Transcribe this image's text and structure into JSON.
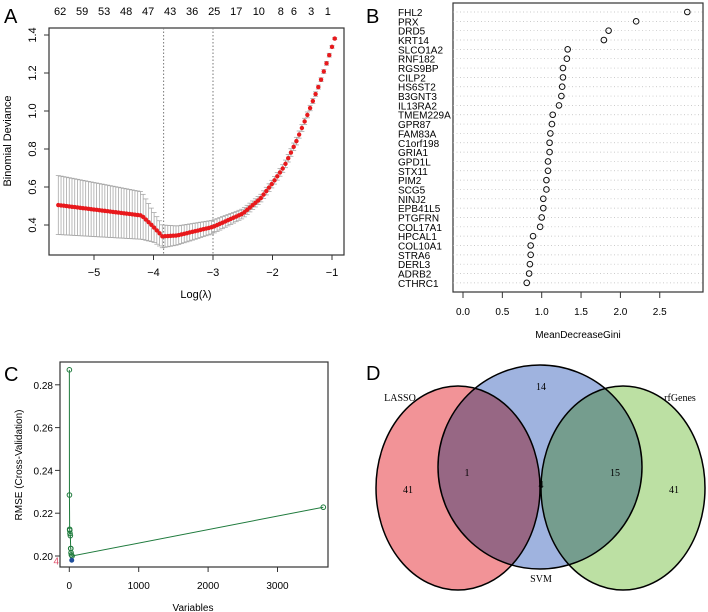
{
  "panel_labels": [
    "A",
    "B",
    "C",
    "D"
  ],
  "chart_data": [
    {
      "type": "line",
      "panel": "A",
      "xlabel": "Log(λ)",
      "ylabel": "Binomial Deviance",
      "xlim": [
        -5.8,
        -0.85
      ],
      "ylim": [
        0.27,
        1.42
      ],
      "xticks": [
        -5,
        -4,
        -3,
        -2,
        -1
      ],
      "yticks": [
        0.4,
        0.6,
        0.8,
        1.0,
        1.2,
        1.4
      ],
      "top_axis": [
        [
          -5.57,
          "62"
        ],
        [
          -5.2,
          "59"
        ],
        [
          -4.83,
          "53"
        ],
        [
          -4.46,
          "48"
        ],
        [
          -4.09,
          "47"
        ],
        [
          -3.72,
          "43"
        ],
        [
          -3.35,
          "36"
        ],
        [
          -2.98,
          "25"
        ],
        [
          -2.61,
          "17"
        ],
        [
          -2.23,
          "10"
        ],
        [
          -1.86,
          "8"
        ],
        [
          -1.64,
          "6"
        ],
        [
          -1.35,
          "3"
        ],
        [
          -1.07,
          "1"
        ]
      ],
      "vlines": [
        -3.83,
        -3.0
      ],
      "series_color": "#e8191c",
      "errorbar_color": "#a8a8a8",
      "points": [
        [
          -5.6,
          0.505,
          0.155
        ],
        [
          -4.2,
          0.45,
          0.125
        ],
        [
          -4.0,
          0.39,
          0.08
        ],
        [
          -3.85,
          0.34,
          0.06
        ],
        [
          -3.6,
          0.345,
          0.05
        ],
        [
          -3.0,
          0.39,
          0.035
        ],
        [
          -2.5,
          0.46,
          0.025
        ],
        [
          -2.2,
          0.54,
          0.02
        ],
        [
          -2.0,
          0.62,
          0.02
        ],
        [
          -1.8,
          0.71,
          0.02
        ],
        [
          -1.6,
          0.84,
          0.02
        ],
        [
          -1.4,
          0.99,
          0.015
        ],
        [
          -1.2,
          1.15,
          0.01
        ],
        [
          -1.05,
          1.29,
          0.01
        ],
        [
          -0.95,
          1.385,
          0.005
        ]
      ]
    },
    {
      "type": "scatter",
      "panel": "B",
      "xlabel": "MeanDecreaseGini",
      "xlim": [
        -0.1,
        2.95
      ],
      "xticks": [
        "0.0",
        "0.5",
        "1.0",
        "1.5",
        "2.0",
        "2.5"
      ],
      "categories": [
        "FHL2",
        "PRX",
        "DRD5",
        "KRT14",
        "SLCO1A2",
        "RNF182",
        "RGS9BP",
        "CILP2",
        "HS6ST2",
        "B3GNT3",
        "IL13RA2",
        "TMEM229A",
        "GPR87",
        "FAM83A",
        "C1orf198",
        "GRIA1",
        "GPD1L",
        "STX11",
        "PIM2",
        "SCG5",
        "NINJ2",
        "EPB41L5",
        "PTGFRN",
        "COL17A1",
        "HPCAL1",
        "COL10A1",
        "STRA6",
        "DERL3",
        "ADRB2",
        "CTHRC1"
      ],
      "values": [
        2.85,
        2.2,
        1.85,
        1.79,
        1.33,
        1.32,
        1.27,
        1.27,
        1.26,
        1.25,
        1.22,
        1.14,
        1.13,
        1.11,
        1.1,
        1.1,
        1.08,
        1.08,
        1.06,
        1.06,
        1.02,
        1.02,
        1.0,
        0.98,
        0.89,
        0.86,
        0.86,
        0.85,
        0.84,
        0.81
      ]
    },
    {
      "type": "line",
      "panel": "C",
      "xlabel": "Variables",
      "ylabel": "RMSE (Cross-Validation)",
      "xlim": [
        -130,
        3740
      ],
      "ylim": [
        0.195,
        0.29
      ],
      "xticks": [
        "0",
        "1000",
        "2000",
        "3000"
      ],
      "yticks": [
        "0.20",
        "0.22",
        "0.24",
        "0.26",
        "0.28"
      ],
      "line_color": "#1e7a3c",
      "best_color": "#1f4e9c",
      "best_label": "4",
      "best_label_color": "#e0506a",
      "x": [
        1,
        2,
        5,
        6,
        10,
        15,
        20,
        22,
        25,
        30,
        40,
        3660
      ],
      "y": [
        0.287,
        0.2285,
        0.2125,
        0.212,
        0.2105,
        0.2095,
        0.2035,
        0.2035,
        0.2015,
        0.2005,
        0.2,
        0.2228
      ],
      "best": [
        35,
        0.198
      ]
    },
    {
      "type": "venn",
      "panel": "D",
      "sets": [
        {
          "name": "LASSO",
          "color": "#ee6f74"
        },
        {
          "name": "SVM",
          "color": "#7f9ad4"
        },
        {
          "name": "rfGenes",
          "color": "#a6d684"
        }
      ],
      "regions": {
        "lasso_only": "41",
        "svm_only": "14",
        "rf_only": "41",
        "lasso_svm": "1",
        "svm_rf": "15",
        "all": "4"
      }
    }
  ]
}
